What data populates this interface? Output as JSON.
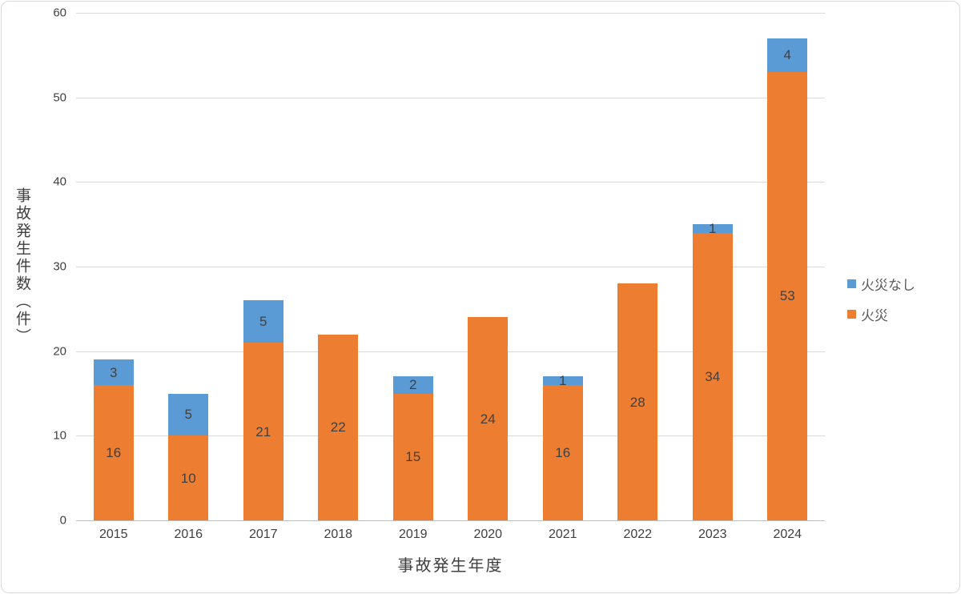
{
  "chart_data": {
    "type": "bar",
    "stacked": true,
    "title": "",
    "categories": [
      "2015",
      "2016",
      "2017",
      "2018",
      "2019",
      "2020",
      "2021",
      "2022",
      "2023",
      "2024"
    ],
    "series": [
      {
        "name": "火災",
        "color": "#ED7D31",
        "values": [
          16,
          10,
          21,
          22,
          15,
          24,
          16,
          28,
          34,
          53
        ]
      },
      {
        "name": "火災なし",
        "color": "#5B9BD5",
        "values": [
          3,
          5,
          5,
          0,
          2,
          0,
          1,
          0,
          1,
          4
        ]
      }
    ],
    "xlabel": "事故発生年度",
    "ylabel": "事故発生件数（件）",
    "ylim": [
      0,
      60
    ],
    "yticks": [
      0,
      10,
      20,
      30,
      40,
      50,
      60
    ],
    "grid": "horizontal",
    "legend_position": "right",
    "legend_order": [
      "火災なし",
      "火災"
    ],
    "gridline_color": "#d9d9d9",
    "axis_line_color": "#bfbfbf",
    "label_color": "#404040"
  }
}
